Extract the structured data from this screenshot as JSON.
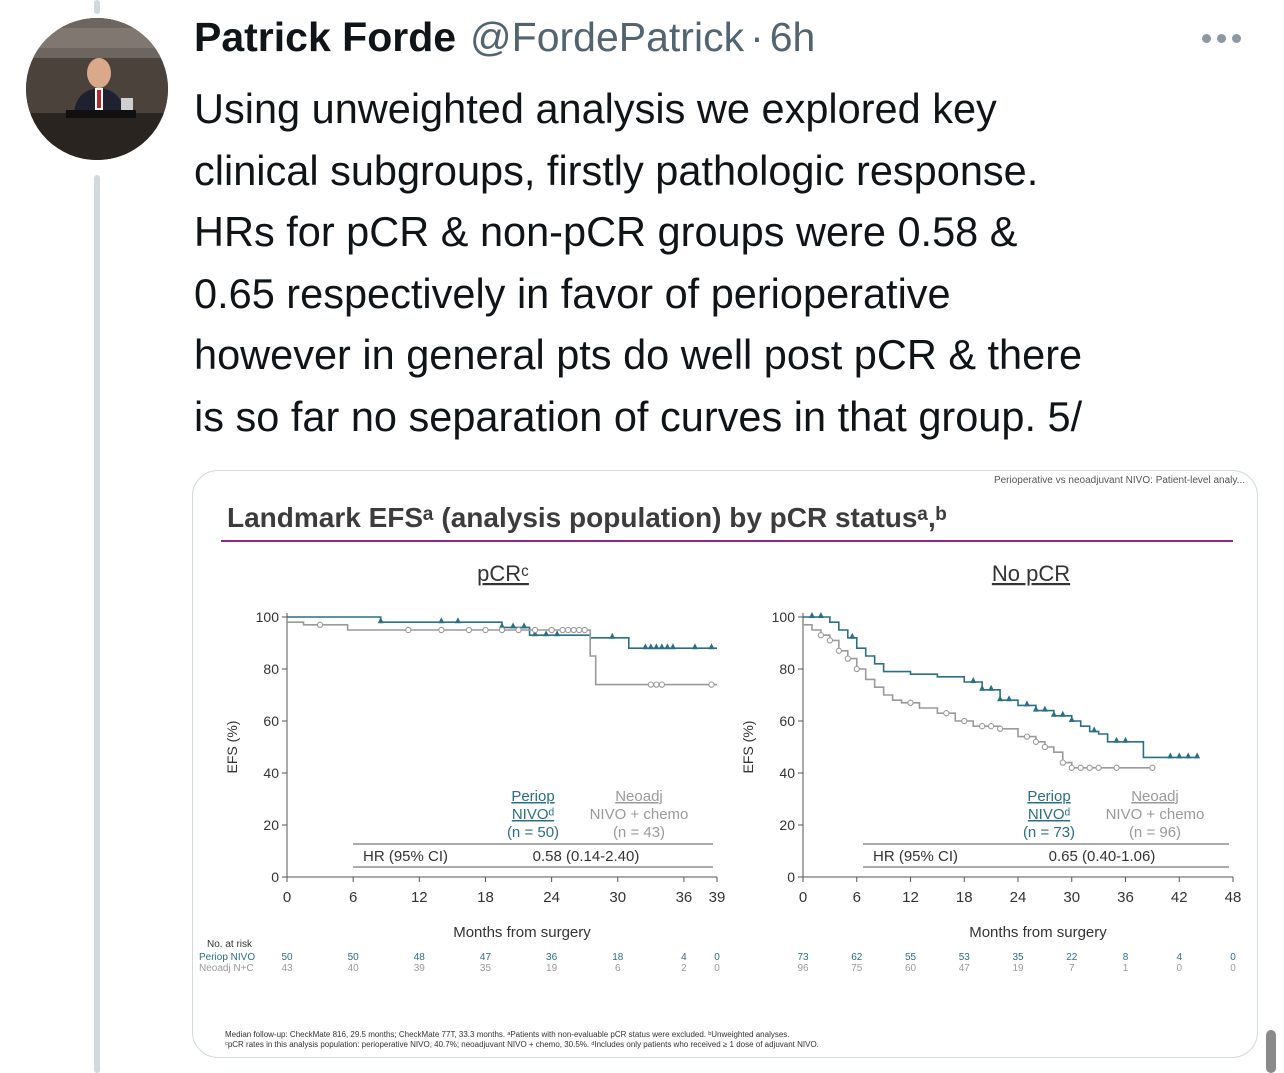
{
  "tweet": {
    "author_name": "Patrick Forde",
    "author_handle": "@FordePatrick",
    "separator": "·",
    "time": "6h",
    "text_lines": [
      "Using unweighted analysis we explored key",
      "clinical subgroups, firstly pathologic response.",
      "HRs for pCR & non-pCR groups were 0.58 &",
      "0.65 respectively in favor of perioperative",
      "however in general pts do well post pCR & there",
      "is so far no separation of curves in that group. 5/"
    ]
  },
  "slide": {
    "corner_label": "Perioperative vs neoadjuvant NIVO: Patient-level analy...",
    "title": "Landmark EFSᵃ (analysis population) by pCR statusᵃ,ᵇ",
    "accent_color": "#8e2a8a",
    "perio_color": "#2a6f86",
    "neoadj_color": "#9a9a9a",
    "footnote_1": "Median follow-up: CheckMate 816, 29.5 months; CheckMate 77T, 33.3 months. ᵃPatients with non-evaluable pCR status were excluded. ᵇUnweighted analyses.",
    "footnote_2": "ᶜpCR rates in this analysis population: perioperative NIVO, 40.7%; neoadjuvant NIVO + chemo, 30.5%. ᵈIncludes only patients who received ≥ 1 dose of adjuvant NIVO.",
    "at_risk_label": "No. at risk",
    "at_risk_perio_label": "Periop NIVO",
    "at_risk_neoadj_label": "Neoadj N+C"
  },
  "chart_data": [
    {
      "type": "line",
      "title": "pCRᶜ",
      "xlabel": "Months from surgery",
      "ylabel": "EFS (%)",
      "xlim": [
        0,
        39
      ],
      "ylim": [
        0,
        100
      ],
      "x_ticks": [
        0,
        6,
        12,
        18,
        24,
        30,
        36,
        39
      ],
      "y_ticks": [
        0,
        20,
        40,
        60,
        80,
        100
      ],
      "hr_label": "HR (95% CI)",
      "hr_value": "0.58 (0.14-2.40)",
      "legend": [
        {
          "name": "Periop NIVOᵈ",
          "n": "(n = 50)"
        },
        {
          "name": "Neoadj NIVO + chemo",
          "n": "(n = 43)"
        }
      ],
      "series": [
        {
          "name": "Periop NIVO",
          "x": [
            0,
            2,
            2,
            8.5,
            8.5,
            19.5,
            19.5,
            22,
            22,
            27.5,
            27.5,
            31,
            31,
            39
          ],
          "y": [
            100,
            100,
            100,
            100,
            98,
            98,
            96,
            96,
            93,
            93,
            92,
            92,
            88,
            88
          ],
          "censor_x": [
            8.5,
            14,
            15.5,
            19.5,
            20.5,
            21.5,
            22.5,
            23.5,
            24.5,
            29.5,
            32.5,
            33,
            33.5,
            34,
            34.5,
            35,
            37,
            38.5
          ]
        },
        {
          "name": "Neoadj NIVO + chemo",
          "x": [
            0,
            1.5,
            1.5,
            5.5,
            5.5,
            27.5,
            27.5,
            28,
            28,
            39
          ],
          "y": [
            98,
            98,
            97,
            97,
            95,
            95,
            85,
            85,
            74,
            74
          ],
          "censor_x": [
            3,
            11,
            14,
            16.5,
            18,
            19.5,
            21,
            22.5,
            24,
            25,
            25.5,
            26,
            26.5,
            27,
            33,
            33.5,
            34,
            38.5
          ]
        }
      ],
      "at_risk_x": [
        0,
        6,
        12,
        18,
        24,
        30,
        36,
        39
      ],
      "at_risk_perio": [
        "50",
        "50",
        "48",
        "47",
        "36",
        "18",
        "4",
        "0"
      ],
      "at_risk_neoadj": [
        "43",
        "40",
        "39",
        "35",
        "19",
        "6",
        "2",
        "0"
      ]
    },
    {
      "type": "line",
      "title": "No pCR",
      "xlabel": "Months from surgery",
      "ylabel": "EFS (%)",
      "xlim": [
        0,
        48
      ],
      "ylim": [
        0,
        100
      ],
      "x_ticks": [
        0,
        6,
        12,
        18,
        24,
        30,
        36,
        42,
        48
      ],
      "y_ticks": [
        0,
        20,
        40,
        60,
        80,
        100
      ],
      "hr_label": "HR (95% CI)",
      "hr_value": "0.65 (0.40-1.06)",
      "legend": [
        {
          "name": "Periop NIVOᵈ",
          "n": "(n = 73)"
        },
        {
          "name": "Neoadj NIVO + chemo",
          "n": "(n = 96)"
        }
      ],
      "series": [
        {
          "name": "Periop NIVO",
          "x": [
            0,
            3,
            4,
            5,
            6,
            7,
            8,
            9,
            12,
            15,
            18,
            20,
            22,
            24,
            26,
            28,
            30,
            31,
            32,
            33,
            34,
            36,
            38,
            40,
            42,
            44
          ],
          "y": [
            100,
            98,
            95,
            92,
            88,
            85,
            82,
            79,
            78,
            77,
            75,
            72,
            68,
            66,
            64,
            62,
            60,
            58,
            56,
            55,
            52,
            52,
            46,
            46,
            46,
            46
          ],
          "censor_x": [
            1,
            2,
            5.5,
            19,
            20,
            21,
            22,
            23,
            25,
            26,
            27,
            28,
            29,
            30,
            32.5,
            35,
            36,
            41,
            42,
            43,
            44
          ]
        },
        {
          "name": "Neoadj NIVO + chemo",
          "x": [
            0,
            1,
            2,
            3,
            4,
            5,
            6,
            7,
            8,
            9,
            10,
            11,
            13,
            15,
            17,
            19,
            20,
            22,
            24,
            26,
            27,
            28,
            29,
            30,
            32,
            34,
            36,
            38,
            39
          ],
          "y": [
            97,
            95,
            93,
            91,
            87,
            84,
            80,
            76,
            73,
            70,
            68,
            67,
            65,
            63,
            60,
            58,
            58,
            57,
            54,
            52,
            50,
            48,
            44,
            42,
            42,
            42,
            42,
            42,
            42
          ],
          "censor_x": [
            2,
            3,
            4,
            5,
            6,
            12,
            16,
            18,
            20,
            21,
            22,
            25,
            26,
            27,
            29,
            30,
            31,
            32,
            33,
            35,
            39
          ]
        }
      ],
      "at_risk_x": [
        0,
        6,
        12,
        18,
        24,
        30,
        36,
        42,
        48
      ],
      "at_risk_perio": [
        "73",
        "62",
        "55",
        "53",
        "35",
        "22",
        "8",
        "4",
        "0"
      ],
      "at_risk_neoadj": [
        "96",
        "75",
        "60",
        "47",
        "19",
        "7",
        "1",
        "0",
        "0"
      ]
    }
  ]
}
